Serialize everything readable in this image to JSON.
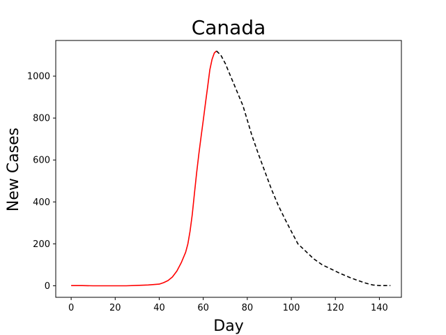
{
  "chart_data": {
    "type": "line",
    "title": "Canada",
    "xlabel": "Day",
    "ylabel": "New Cases",
    "xlim": [
      -7,
      150
    ],
    "ylim": [
      -55,
      1170
    ],
    "x_ticks": [
      0,
      20,
      40,
      60,
      80,
      100,
      120,
      140
    ],
    "y_ticks": [
      0,
      200,
      400,
      600,
      800,
      1000
    ],
    "grid": false,
    "legend": "none",
    "series": [
      {
        "color": "#ff0000",
        "style": "solid",
        "points": [
          [
            0,
            1
          ],
          [
            5,
            1
          ],
          [
            10,
            0
          ],
          [
            20,
            0
          ],
          [
            25,
            0
          ],
          [
            30,
            2
          ],
          [
            35,
            4
          ],
          [
            40,
            8
          ],
          [
            42,
            15
          ],
          [
            44,
            25
          ],
          [
            46,
            42
          ],
          [
            48,
            70
          ],
          [
            50,
            110
          ],
          [
            52,
            160
          ],
          [
            53,
            200
          ],
          [
            54,
            260
          ],
          [
            55,
            340
          ],
          [
            56,
            440
          ],
          [
            57,
            540
          ],
          [
            58,
            630
          ],
          [
            59,
            710
          ],
          [
            60,
            790
          ],
          [
            61,
            870
          ],
          [
            62,
            950
          ],
          [
            63,
            1030
          ],
          [
            64,
            1080
          ],
          [
            65,
            1110
          ],
          [
            66,
            1120
          ]
        ]
      },
      {
        "color": "#000000",
        "style": "dashed",
        "points": [
          [
            66,
            1120
          ],
          [
            68,
            1100
          ],
          [
            70,
            1060
          ],
          [
            72,
            1010
          ],
          [
            74,
            960
          ],
          [
            76,
            910
          ],
          [
            78,
            860
          ],
          [
            80,
            790
          ],
          [
            82,
            720
          ],
          [
            85,
            630
          ],
          [
            88,
            545
          ],
          [
            91,
            460
          ],
          [
            94,
            385
          ],
          [
            97,
            320
          ],
          [
            100,
            260
          ],
          [
            103,
            200
          ],
          [
            107,
            160
          ],
          [
            110,
            130
          ],
          [
            114,
            100
          ],
          [
            118,
            80
          ],
          [
            122,
            60
          ],
          [
            126,
            42
          ],
          [
            130,
            26
          ],
          [
            134,
            12
          ],
          [
            137,
            4
          ],
          [
            140,
            1
          ],
          [
            145,
            1
          ]
        ]
      }
    ]
  }
}
